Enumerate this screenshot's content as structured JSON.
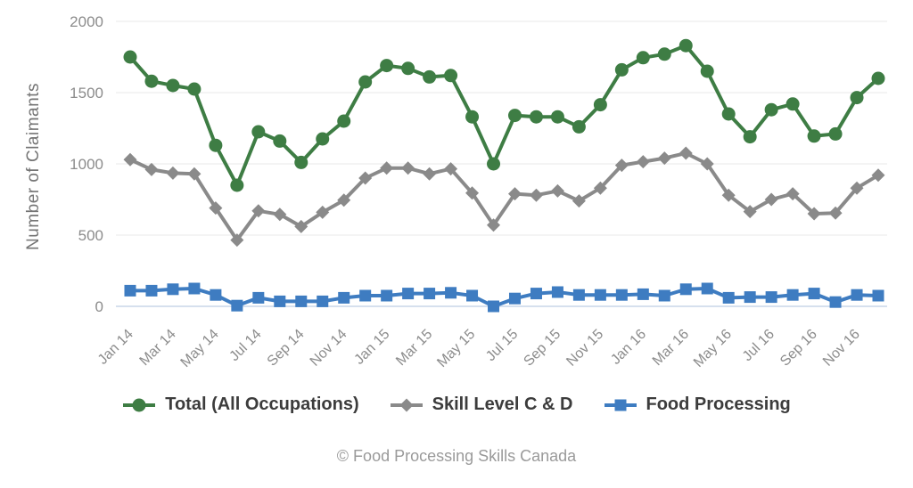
{
  "chart_data": {
    "type": "line",
    "title": "",
    "xlabel": "",
    "ylabel": "Number of Claimants",
    "ylim": [
      0,
      2000
    ],
    "yticks": [
      0,
      500,
      1000,
      1500,
      2000
    ],
    "grid": "horizontal",
    "legend_position": "bottom",
    "x_label_every": 2,
    "x": [
      "Jan 14",
      "Feb 14",
      "Mar 14",
      "Apr 14",
      "May 14",
      "Jun 14",
      "Jul 14",
      "Aug 14",
      "Sep 14",
      "Oct 14",
      "Nov 14",
      "Dec 14",
      "Jan 15",
      "Feb 15",
      "Mar 15",
      "Apr 15",
      "May 15",
      "Jun 15",
      "Jul 15",
      "Aug 15",
      "Sep 15",
      "Oct 15",
      "Nov 15",
      "Dec 15",
      "Jan 16",
      "Feb 16",
      "Mar 16",
      "Apr 16",
      "May 16",
      "Jun 16",
      "Jul 16",
      "Aug 16",
      "Sep 16",
      "Oct 16",
      "Nov 16",
      "Dec 16"
    ],
    "series": [
      {
        "name": "Total (All Occupations)",
        "marker": "circle",
        "color": "#3e7d44",
        "values": [
          1750,
          1580,
          1550,
          1525,
          1130,
          850,
          1225,
          1160,
          1010,
          1175,
          1300,
          1575,
          1690,
          1670,
          1610,
          1620,
          1330,
          1000,
          1340,
          1330,
          1330,
          1260,
          1415,
          1660,
          1745,
          1770,
          1830,
          1650,
          1350,
          1190,
          1380,
          1420,
          1195,
          1210,
          1465,
          1600
        ]
      },
      {
        "name": "Skill Level C & D",
        "marker": "diamond",
        "color": "#8a8a8a",
        "values": [
          1030,
          960,
          935,
          930,
          690,
          465,
          670,
          645,
          560,
          660,
          745,
          900,
          970,
          970,
          930,
          965,
          795,
          570,
          790,
          780,
          810,
          740,
          830,
          990,
          1015,
          1040,
          1075,
          1000,
          780,
          665,
          750,
          790,
          650,
          655,
          830,
          920
        ]
      },
      {
        "name": "Food Processing",
        "marker": "square",
        "color": "#3e7cc1",
        "values": [
          110,
          110,
          120,
          125,
          80,
          5,
          60,
          35,
          35,
          35,
          60,
          75,
          75,
          90,
          90,
          95,
          75,
          0,
          55,
          90,
          100,
          80,
          80,
          80,
          85,
          75,
          120,
          125,
          60,
          65,
          65,
          80,
          90,
          30,
          80,
          75
        ]
      }
    ],
    "colors": {
      "gridline": "#e8e8e8",
      "zero_baseline": "#c9d6e8",
      "tick_text": "#8c8c8c"
    }
  },
  "footer": {
    "copyright": "© Food Processing Skills Canada"
  }
}
